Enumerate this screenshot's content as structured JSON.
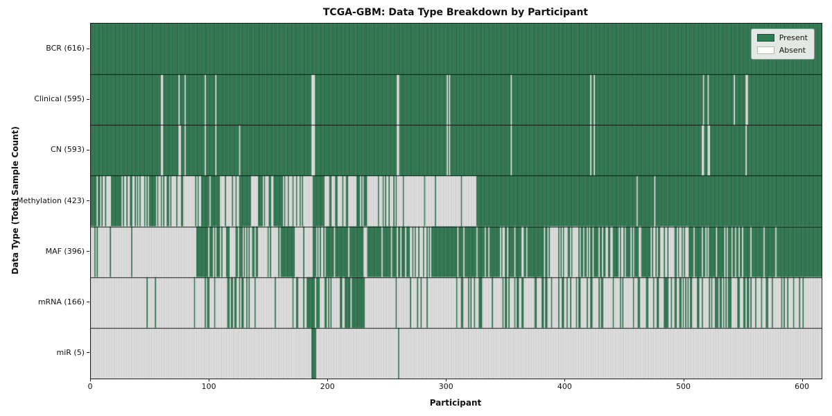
{
  "title": "TCGA-GBM: Data Type Breakdown by Participant",
  "axes": {
    "x_label": "Participant",
    "y_label": "Data Type (Total Sample Count)",
    "x_ticks": [
      0,
      100,
      200,
      300,
      400,
      500,
      600
    ],
    "x_max": 616
  },
  "legend": {
    "items": [
      {
        "label": "Present",
        "color": "#2e7d52",
        "edge": "#1c5237"
      },
      {
        "label": "Absent",
        "color": "#ffffff",
        "edge": "#b5b5b5"
      }
    ]
  },
  "colors": {
    "present": "#2e7d52",
    "present_edge": "rgba(12,48,30,0.55)",
    "absent": "#ffffff",
    "absent_edge": "rgba(125,125,125,0.85)",
    "separator": "#111111",
    "tick": "#1a1a1a"
  },
  "chart_data": {
    "type": "heatmap",
    "title": "TCGA-GBM: Data Type Breakdown by Participant",
    "xlabel": "Participant",
    "ylabel": "Data Type (Total Sample Count)",
    "x_range": [
      0,
      616
    ],
    "states": [
      "Present",
      "Absent"
    ],
    "segment_format": "[start_participant, end_participant, probability_present]",
    "rows": [
      {
        "label": "BCR (616)",
        "name": "BCR",
        "total": 616,
        "segments": [
          [
            0,
            616,
            1
          ]
        ]
      },
      {
        "label": "Clinical (595)",
        "name": "Clinical",
        "total": 595,
        "base": 1,
        "absent_indices": [
          59,
          60,
          74,
          79,
          96,
          105,
          186,
          187,
          188,
          258,
          259,
          300,
          302,
          354,
          421,
          424,
          516,
          520,
          542,
          552,
          553
        ]
      },
      {
        "label": "CN (593)",
        "name": "CN",
        "total": 593,
        "base": 1,
        "absent_indices": [
          59,
          60,
          74,
          75,
          79,
          96,
          105,
          125,
          186,
          187,
          188,
          258,
          259,
          300,
          302,
          354,
          421,
          424,
          515,
          516,
          520,
          521,
          552
        ]
      },
      {
        "label": "Methylation (423)",
        "name": "Methylation",
        "total": 423,
        "segments": [
          [
            0,
            10,
            0.8
          ],
          [
            10,
            64,
            0.55
          ],
          [
            64,
            95,
            0.25
          ],
          [
            95,
            109,
            0.85
          ],
          [
            109,
            125,
            0.2
          ],
          [
            125,
            136,
            0.9
          ],
          [
            136,
            154,
            0.25
          ],
          [
            154,
            162,
            1
          ],
          [
            162,
            187,
            0.2
          ],
          [
            187,
            196,
            1
          ],
          [
            196,
            210,
            0.3
          ],
          [
            210,
            258,
            0.4
          ],
          [
            258,
            325,
            0.04
          ],
          [
            325,
            616,
            0.99
          ]
        ]
      },
      {
        "label": "MAF (396)",
        "name": "MAF",
        "total": 396,
        "segments": [
          [
            0,
            89,
            0.08
          ],
          [
            89,
            99,
            1
          ],
          [
            99,
            123,
            0.4
          ],
          [
            123,
            142,
            0.8
          ],
          [
            142,
            160,
            0.3
          ],
          [
            160,
            172,
            1
          ],
          [
            172,
            185,
            0.2
          ],
          [
            185,
            203,
            0.6
          ],
          [
            203,
            259,
            0.88
          ],
          [
            259,
            290,
            0.7
          ],
          [
            290,
            326,
            0.9
          ],
          [
            326,
            382,
            0.8
          ],
          [
            382,
            419,
            0.25
          ],
          [
            419,
            480,
            0.62
          ],
          [
            480,
            505,
            0.45
          ],
          [
            505,
            616,
            0.9
          ]
        ]
      },
      {
        "label": "mRNA (166)",
        "name": "mRNA",
        "total": 166,
        "segments": [
          [
            0,
            86,
            0.05
          ],
          [
            86,
            105,
            0.35
          ],
          [
            105,
            135,
            0.25
          ],
          [
            135,
            179,
            0.1
          ],
          [
            179,
            194,
            0.85
          ],
          [
            194,
            209,
            0.3
          ],
          [
            209,
            231,
            0.75
          ],
          [
            231,
            308,
            0.08
          ],
          [
            308,
            345,
            0.3
          ],
          [
            345,
            388,
            0.4
          ],
          [
            388,
            444,
            0.35
          ],
          [
            444,
            474,
            0.2
          ],
          [
            474,
            524,
            0.45
          ],
          [
            524,
            573,
            0.35
          ],
          [
            573,
            616,
            0.2
          ]
        ]
      },
      {
        "label": "miR (5)",
        "name": "miR",
        "total": 5,
        "base": 0,
        "present_indices": [
          186,
          187,
          188,
          189,
          259
        ]
      }
    ]
  }
}
